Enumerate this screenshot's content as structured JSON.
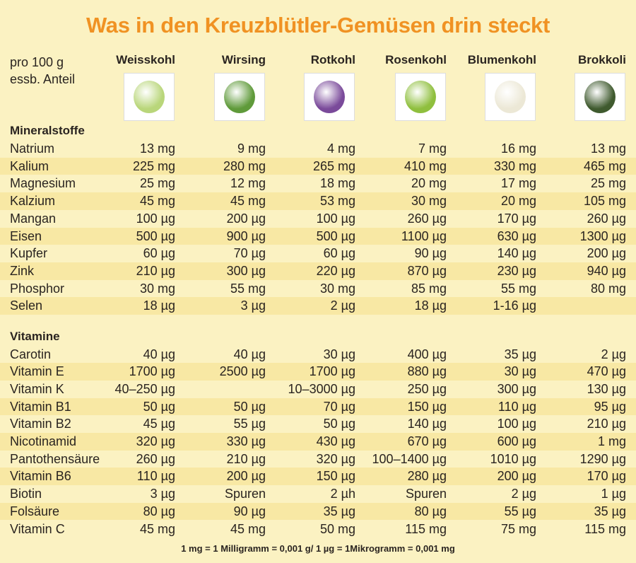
{
  "title": "Was in den Kreuzblütler-Gemüsen drin steckt",
  "unit_label": [
    "pro 100 g",
    "essb. Anteil"
  ],
  "columns": [
    {
      "name": "Weisskohl",
      "color": "#b9d67a"
    },
    {
      "name": "Wirsing",
      "color": "#5f9a3a"
    },
    {
      "name": "Rotkohl",
      "color": "#7a4a9a"
    },
    {
      "name": "Rosenkohl",
      "color": "#8fbf3e"
    },
    {
      "name": "Blumenkohl",
      "color": "#ece8d6"
    },
    {
      "name": "Brokkoli",
      "color": "#3f5a2e"
    }
  ],
  "sections": [
    {
      "title": "Mineralstoffe",
      "rows": [
        {
          "label": "Natrium",
          "values": [
            "13 mg",
            "9 mg",
            "4 mg",
            "7 mg",
            "16 mg",
            "13 mg"
          ]
        },
        {
          "label": "Kalium",
          "values": [
            "225 mg",
            "280 mg",
            "265 mg",
            "410 mg",
            "330 mg",
            "465 mg"
          ]
        },
        {
          "label": "Magnesium",
          "values": [
            "25 mg",
            "12 mg",
            "18 mg",
            "20 mg",
            "17 mg",
            "25 mg"
          ]
        },
        {
          "label": "Kalzium",
          "values": [
            "45 mg",
            "45 mg",
            "53 mg",
            "30 mg",
            "20 mg",
            "105 mg"
          ]
        },
        {
          "label": "Mangan",
          "values": [
            "100 µg",
            "200 µg",
            "100 µg",
            "260 µg",
            "170 µg",
            "260 µg"
          ]
        },
        {
          "label": "Eisen",
          "values": [
            "500 µg",
            "900 µg",
            "500 µg",
            "1100 µg",
            "630 µg",
            "1300 µg"
          ]
        },
        {
          "label": "Kupfer",
          "values": [
            "60 µg",
            "70 µg",
            "60 µg",
            "90 µg",
            "140 µg",
            "200 µg"
          ]
        },
        {
          "label": "Zink",
          "values": [
            "210 µg",
            "300 µg",
            "220 µg",
            "870 µg",
            "230 µg",
            "940 µg"
          ]
        },
        {
          "label": "Phosphor",
          "values": [
            "30 mg",
            "55 mg",
            "30 mg",
            "85 mg",
            "55 mg",
            "80 mg"
          ]
        },
        {
          "label": "Selen",
          "values": [
            "18 µg",
            "3 µg",
            "2 µg",
            "18 µg",
            "1-16 µg",
            ""
          ]
        }
      ]
    },
    {
      "title": "Vitamine",
      "rows": [
        {
          "label": "Carotin",
          "values": [
            "40 µg",
            "40 µg",
            "30 µg",
            "400 µg",
            "35 µg",
            "2 µg"
          ]
        },
        {
          "label": "Vitamin E",
          "values": [
            "1700 µg",
            "2500 µg",
            "1700 µg",
            "880 µg",
            "30 µg",
            "470 µg"
          ]
        },
        {
          "label": "Vitamin K",
          "values": [
            "40–250 µg",
            "",
            "10–3000 µg",
            "250 µg",
            "300 µg",
            "130 µg"
          ]
        },
        {
          "label": "Vitamin B1",
          "values": [
            "50 µg",
            "50 µg",
            "70 µg",
            "150 µg",
            "110 µg",
            "95 µg"
          ]
        },
        {
          "label": "Vitamin B2",
          "values": [
            "45 µg",
            "55 µg",
            "50 µg",
            "140 µg",
            "100 µg",
            "210 µg"
          ]
        },
        {
          "label": "Nicotinamid",
          "values": [
            "320 µg",
            "330 µg",
            "430 µg",
            "670 µg",
            "600 µg",
            "1 mg"
          ]
        },
        {
          "label": "Pantothensäure",
          "values": [
            "260 µg",
            "210 µg",
            "320 µg",
            "100–1400 µg",
            "1010 µg",
            "1290 µg"
          ]
        },
        {
          "label": "Vitamin B6",
          "values": [
            "110 µg",
            "200 µg",
            "150 µg",
            "280 µg",
            "200 µg",
            "170 µg"
          ]
        },
        {
          "label": "Biotin",
          "values": [
            "3 µg",
            "Spuren",
            "2 µh",
            "Spuren",
            "2 µg",
            "1 µg"
          ]
        },
        {
          "label": "Folsäure",
          "values": [
            "80 µg",
            "90 µg",
            "35 µg",
            "80 µg",
            "55 µg",
            "35 µg"
          ]
        },
        {
          "label": "Vitamin C",
          "values": [
            "45 mg",
            "45 mg",
            "50 mg",
            "115 mg",
            "75 mg",
            "115 mg"
          ]
        }
      ]
    }
  ],
  "footer": "1 mg = 1 Milligramm = 0,001 g/ 1 µg = 1Mikrogramm = 0,001 mg"
}
